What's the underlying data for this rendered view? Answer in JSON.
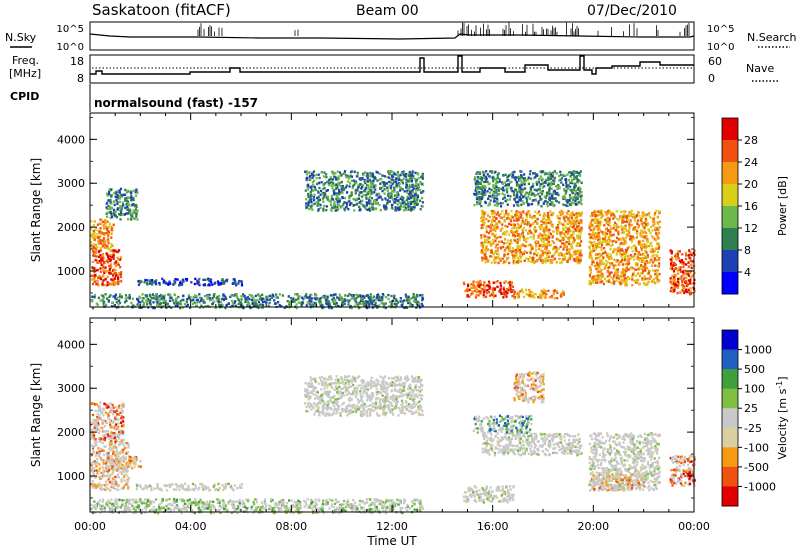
{
  "header": {
    "station": "Saskatoon (fitACF)",
    "beam": "Beam 00",
    "date": "07/Dec/2010"
  },
  "top_panels": {
    "nsky_label": "N.Sky",
    "nsearch_label": "N.Search",
    "freq_label_1": "Freq.",
    "freq_label_2": "[MHz]",
    "nave_label": "Nave",
    "cpid_label": "CPID",
    "cpid_text": "normalsound (fast) -157",
    "noise_ticks_left": [
      "10^5",
      "10^0"
    ],
    "noise_ticks_right": [
      "10^5",
      "10^0"
    ],
    "freq_ticks": [
      "18",
      "8"
    ],
    "nave_ticks": [
      "60",
      "0"
    ]
  },
  "chart_data": [
    {
      "type": "heatmap",
      "quantity": "Power",
      "xlabel": "",
      "ylabel": "Slant Range [km]",
      "xlim_hours": [
        0,
        24
      ],
      "ylim_km": [
        180,
        4600
      ],
      "yticks": [
        "4000",
        "3000",
        "2000",
        "1000"
      ],
      "colorbar_label": "Power [dB]",
      "colorbar_ticks": [
        "28",
        "24",
        "20",
        "16",
        "12",
        "8",
        "4"
      ],
      "colorbar_colors": [
        "#0000ff",
        "#1f3fb4",
        "#2f7f4f",
        "#6cb84a",
        "#d8d018",
        "#f59a12",
        "#f05010",
        "#e00000"
      ],
      "regions": [
        {
          "t0": 0.0,
          "t1": 1.2,
          "r0": 700,
          "r1": 1500,
          "level": 6
        },
        {
          "t0": 0.0,
          "t1": 0.9,
          "r0": 1500,
          "r1": 2200,
          "level": 5
        },
        {
          "t0": 0.6,
          "t1": 1.9,
          "r0": 2200,
          "r1": 2900,
          "level": 2
        },
        {
          "t0": 1.8,
          "t1": 6.0,
          "r0": 700,
          "r1": 850,
          "level": 1
        },
        {
          "t0": 0.0,
          "t1": 13.2,
          "r0": 180,
          "r1": 500,
          "level": 2
        },
        {
          "t0": 8.5,
          "t1": 13.2,
          "r0": 2400,
          "r1": 3300,
          "level": 2
        },
        {
          "t0": 14.8,
          "t1": 16.8,
          "r0": 420,
          "r1": 800,
          "level": 6
        },
        {
          "t0": 16.8,
          "t1": 18.8,
          "r0": 400,
          "r1": 600,
          "level": 5
        },
        {
          "t0": 15.5,
          "t1": 19.5,
          "r0": 1200,
          "r1": 2400,
          "level": 5
        },
        {
          "t0": 15.2,
          "t1": 19.5,
          "r0": 2500,
          "r1": 3300,
          "level": 2
        },
        {
          "t0": 19.8,
          "t1": 22.6,
          "r0": 700,
          "r1": 2400,
          "level": 5
        },
        {
          "t0": 23.0,
          "t1": 24.0,
          "r0": 500,
          "r1": 1500,
          "level": 6
        }
      ],
      "data_gaps_hours": [
        [
          13.2,
          14.6
        ],
        [
          19.6,
          19.9
        ],
        [
          22.7,
          23.0
        ]
      ]
    },
    {
      "type": "heatmap",
      "quantity": "Velocity",
      "xlabel": "Time UT",
      "ylabel": "Slant Range [km]",
      "xlim_hours": [
        0,
        24
      ],
      "ylim_km": [
        180,
        4600
      ],
      "yticks": [
        "4000",
        "3000",
        "2000",
        "1000"
      ],
      "xticks": [
        "00:00",
        "04:00",
        "08:00",
        "12:00",
        "16:00",
        "20:00",
        "00:00"
      ],
      "colorbar_label": "Velocity [m s",
      "colorbar_ticks": [
        "1000",
        "500",
        "100",
        "25",
        "-25",
        "-100",
        "-500",
        "-1000"
      ],
      "colorbar_colors": [
        "#e00000",
        "#f05010",
        "#f59a12",
        "#d8d0a0",
        "#c8c8c8",
        "#7fbf3f",
        "#3f9f3f",
        "#1f5fbf",
        "#0000cf"
      ],
      "regions": [
        {
          "t0": 0.0,
          "t1": 1.5,
          "r0": 700,
          "r1": 1800,
          "level": 2
        },
        {
          "t0": 0.0,
          "t1": 1.3,
          "r0": 1800,
          "r1": 2700,
          "level": 1
        },
        {
          "t0": 0.6,
          "t1": 2.0,
          "r0": 1200,
          "r1": 1500,
          "level": 2
        },
        {
          "t0": 1.8,
          "t1": 6.0,
          "r0": 700,
          "r1": 850,
          "level": 4
        },
        {
          "t0": 0.0,
          "t1": 13.2,
          "r0": 180,
          "r1": 500,
          "level": 5
        },
        {
          "t0": 8.5,
          "t1": 13.2,
          "r0": 2400,
          "r1": 3300,
          "level": 4
        },
        {
          "t0": 14.8,
          "t1": 16.8,
          "r0": 420,
          "r1": 800,
          "level": 4
        },
        {
          "t0": 15.5,
          "t1": 19.5,
          "r0": 1500,
          "r1": 2000,
          "level": 4
        },
        {
          "t0": 15.2,
          "t1": 17.5,
          "r0": 2000,
          "r1": 2400,
          "level": 6
        },
        {
          "t0": 16.8,
          "t1": 18.0,
          "r0": 2700,
          "r1": 3400,
          "level": 2
        },
        {
          "t0": 19.8,
          "t1": 22.6,
          "r0": 700,
          "r1": 2000,
          "level": 4
        },
        {
          "t0": 19.9,
          "t1": 22.0,
          "r0": 700,
          "r1": 1100,
          "level": 2
        },
        {
          "t0": 23.0,
          "t1": 24.0,
          "r0": 800,
          "r1": 1500,
          "level": 1
        }
      ],
      "data_gaps_hours": [
        [
          13.2,
          14.6
        ],
        [
          19.6,
          19.9
        ],
        [
          22.7,
          23.0
        ]
      ]
    }
  ]
}
